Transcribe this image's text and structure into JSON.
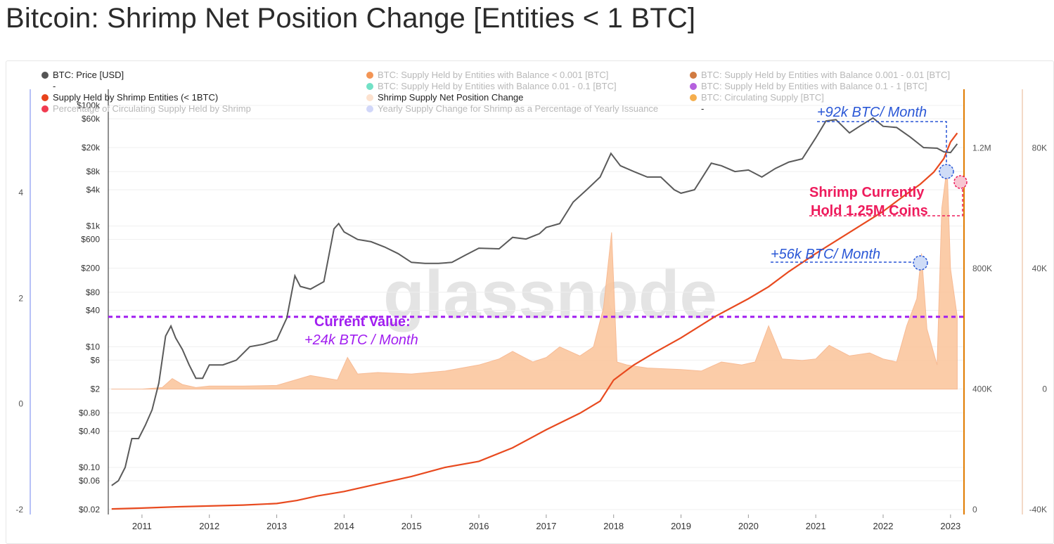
{
  "title": "Bitcoin: Shrimp Net Position Change [Entities < 1 BTC]",
  "watermark": "glassnode",
  "legend": [
    {
      "label": "BTC: Price [USD]",
      "color": "#555555",
      "active": true
    },
    {
      "label": "BTC: Supply Held by Entities with Balance < 0.001 [BTC]",
      "color": "#f07a2a",
      "active": false
    },
    {
      "label": "BTC: Supply Held by Entities with Balance 0.001 - 0.01 [BTC]",
      "color": "#c65a11",
      "active": false
    },
    {
      "label": "-",
      "color": "",
      "active": true
    },
    {
      "label": "BTC: Supply Held by Entities with Balance 0.01 - 0.1 [BTC]",
      "color": "#4fd9b8",
      "active": false
    },
    {
      "label": "BTC: Supply Held by Entities with Balance 0.1 - 1 [BTC]",
      "color": "#a23ad6",
      "active": false
    },
    {
      "label": "Supply Held by Shrimp Entities (< 1BTC)",
      "color": "#e8431c",
      "active": true
    },
    {
      "label": "Shrimp Supply Net Position Change",
      "color": "#fde2cf",
      "active": true
    },
    {
      "label": "BTC: Circulating Supply [BTC]",
      "color": "#f29a21",
      "active": false
    },
    {
      "label": "Percentage of Circulating Supply Held by Shrimp",
      "color": "#ee0a24",
      "active": false
    },
    {
      "label": "Yearly Supply Change for Shrimp as a Percentage of Yearly Issuance",
      "color": "#c5cdf8",
      "active": false
    },
    {
      "label": "-",
      "color": "",
      "active": true
    }
  ],
  "annotations": {
    "current_value_title": "Current Value:",
    "current_value_text": "+24k BTC / Month",
    "rate_92k": "+92k BTC/ Month",
    "rate_56k": "+56k BTC/ Month",
    "shrimp_line1": "Shrimp Currently",
    "shrimp_line2": "Hold 1.25M Coins"
  },
  "colors": {
    "price": "#5a5a5a",
    "shrimp_supply": "#e84a1f",
    "net_change_fill": "#fbc79f",
    "net_change_stroke": "#f7b48a",
    "purple": "#a11ef0",
    "blue": "#2a57d6",
    "red": "#ee1b5c",
    "right_axis": "#e07b00",
    "left_axis": "#b7c1f7",
    "far_right_axis": "#f3d9c7"
  },
  "chart_data": {
    "type": "line",
    "x_ticks": [
      "2011",
      "2012",
      "2013",
      "2014",
      "2015",
      "2016",
      "2017",
      "2018",
      "2019",
      "2020",
      "2021",
      "2022",
      "2023"
    ],
    "x_range": [
      2010.5,
      2023.2
    ],
    "price_axis": {
      "scale": "log",
      "ticks": [
        "$0.02",
        "$0.06",
        "$0.10",
        "$0.40",
        "$0.80",
        "$2",
        "$6",
        "$10",
        "$40",
        "$80",
        "$200",
        "$600",
        "$1k",
        "$4k",
        "$8k",
        "$20k",
        "$60k",
        "$100k"
      ],
      "tick_values": [
        0.02,
        0.06,
        0.1,
        0.4,
        0.8,
        2,
        6,
        10,
        40,
        80,
        200,
        600,
        1000,
        4000,
        8000,
        20000,
        60000,
        100000
      ]
    },
    "left_axis": {
      "ticks": [
        "4",
        "2",
        "0",
        "-2"
      ],
      "tick_values": [
        4,
        2,
        0,
        -2
      ]
    },
    "supply_axis": {
      "ticks": [
        "1.2M",
        "800K",
        "400K",
        "0"
      ],
      "tick_values": [
        1200000,
        800000,
        400000,
        0
      ],
      "range": [
        0,
        1400000
      ]
    },
    "net_change_axis": {
      "ticks": [
        "80K",
        "40K",
        "0",
        "-40K"
      ],
      "tick_values": [
        80000,
        40000,
        0,
        -40000
      ],
      "range": [
        -40000,
        100000
      ]
    },
    "reference_line": {
      "value": 24000,
      "label": "+24k BTC / Month"
    },
    "series": [
      {
        "name": "BTC: Price [USD]",
        "x": [
          2010.55,
          2010.65,
          2010.75,
          2010.85,
          2010.95,
          2011.05,
          2011.15,
          2011.25,
          2011.35,
          2011.43,
          2011.5,
          2011.6,
          2011.7,
          2011.8,
          2011.9,
          2012.0,
          2012.2,
          2012.4,
          2012.6,
          2012.8,
          2013.0,
          2013.15,
          2013.27,
          2013.35,
          2013.5,
          2013.7,
          2013.85,
          2013.92,
          2014.0,
          2014.2,
          2014.4,
          2014.6,
          2014.8,
          2015.0,
          2015.2,
          2015.4,
          2015.6,
          2015.8,
          2016.0,
          2016.3,
          2016.5,
          2016.7,
          2016.9,
          2017.0,
          2017.2,
          2017.4,
          2017.6,
          2017.8,
          2017.96,
          2018.1,
          2018.3,
          2018.5,
          2018.7,
          2018.9,
          2019.0,
          2019.2,
          2019.45,
          2019.6,
          2019.8,
          2020.0,
          2020.2,
          2020.4,
          2020.6,
          2020.8,
          2021.0,
          2021.15,
          2021.3,
          2021.5,
          2021.65,
          2021.85,
          2022.0,
          2022.2,
          2022.4,
          2022.6,
          2022.8,
          2022.9,
          2023.0,
          2023.1
        ],
        "values": [
          0.05,
          0.06,
          0.1,
          0.3,
          0.3,
          0.5,
          0.9,
          2.5,
          15,
          22,
          14,
          9,
          5,
          3,
          3,
          5,
          5,
          6,
          10,
          11,
          13,
          30,
          150,
          100,
          90,
          120,
          900,
          1100,
          800,
          600,
          550,
          450,
          350,
          250,
          240,
          240,
          250,
          330,
          430,
          420,
          650,
          610,
          750,
          950,
          1100,
          2500,
          4000,
          6500,
          16000,
          10000,
          8000,
          6500,
          6500,
          4000,
          3500,
          4000,
          11000,
          10000,
          8000,
          8500,
          6500,
          9000,
          11500,
          13000,
          29000,
          55000,
          58000,
          35000,
          45000,
          62000,
          45000,
          43000,
          30000,
          20000,
          19500,
          17000,
          16500,
          23000
        ]
      },
      {
        "name": "Supply Held by Shrimp Entities (< 1BTC)",
        "x": [
          2010.55,
          2011.0,
          2011.5,
          2012.0,
          2012.5,
          2013.0,
          2013.3,
          2013.6,
          2014.0,
          2014.5,
          2015.0,
          2015.5,
          2016.0,
          2016.5,
          2017.0,
          2017.5,
          2017.8,
          2018.0,
          2018.3,
          2018.6,
          2019.0,
          2019.5,
          2020.0,
          2020.3,
          2020.6,
          2021.0,
          2021.5,
          2022.0,
          2022.3,
          2022.55,
          2022.75,
          2022.9,
          2023.0,
          2023.1
        ],
        "values": [
          2000,
          5000,
          9000,
          12000,
          15000,
          20000,
          30000,
          45000,
          60000,
          85000,
          110000,
          140000,
          160000,
          205000,
          265000,
          320000,
          360000,
          430000,
          480000,
          520000,
          570000,
          640000,
          700000,
          740000,
          790000,
          850000,
          920000,
          990000,
          1040000,
          1080000,
          1120000,
          1165000,
          1220000,
          1250000
        ]
      },
      {
        "name": "Shrimp Supply Net Position Change",
        "x": [
          2010.55,
          2011.0,
          2011.3,
          2011.45,
          2011.6,
          2011.8,
          2012.0,
          2012.5,
          2013.0,
          2013.5,
          2013.9,
          2014.05,
          2014.2,
          2014.5,
          2015.0,
          2015.5,
          2016.0,
          2016.3,
          2016.5,
          2016.8,
          2017.0,
          2017.2,
          2017.5,
          2017.7,
          2017.85,
          2017.97,
          2018.05,
          2018.2,
          2018.5,
          2019.0,
          2019.3,
          2019.6,
          2019.9,
          2020.1,
          2020.3,
          2020.5,
          2020.8,
          2021.0,
          2021.2,
          2021.5,
          2021.8,
          2022.0,
          2022.2,
          2022.35,
          2022.5,
          2022.57,
          2022.65,
          2022.8,
          2022.87,
          2022.95,
          2023.0,
          2023.1
        ],
        "values": [
          0,
          0,
          500,
          3500,
          1500,
          500,
          1000,
          1000,
          1200,
          4500,
          3000,
          10500,
          5000,
          5500,
          5000,
          6000,
          8000,
          10000,
          12500,
          9000,
          10500,
          14000,
          11000,
          14000,
          27000,
          52000,
          9000,
          8000,
          7000,
          6500,
          6000,
          9000,
          8000,
          9000,
          21000,
          10000,
          9500,
          10000,
          14500,
          11000,
          12000,
          10000,
          9000,
          21000,
          30000,
          45000,
          20000,
          8000,
          60000,
          74000,
          40000,
          24000
        ]
      }
    ]
  }
}
